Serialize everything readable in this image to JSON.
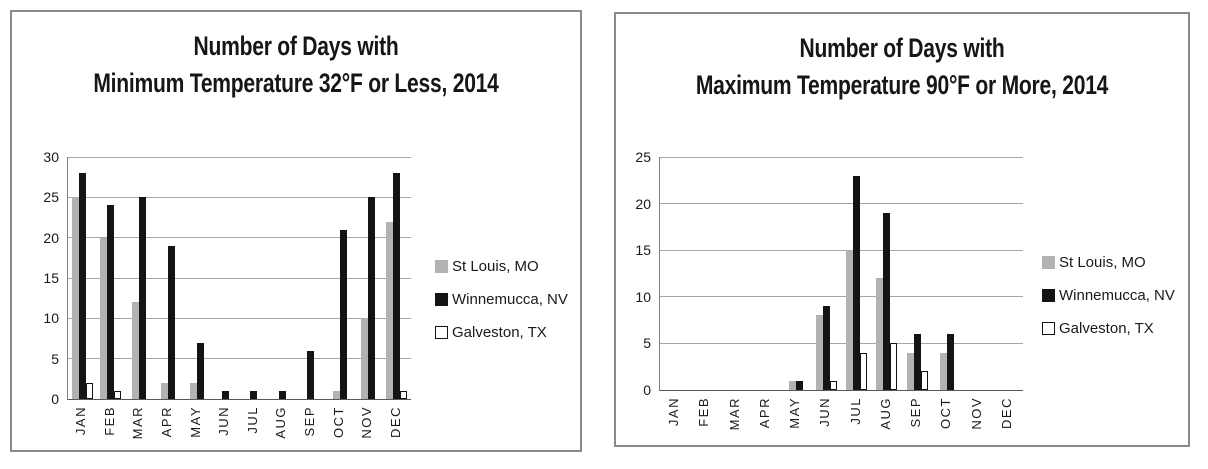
{
  "chart_data": [
    {
      "type": "bar",
      "title": "Number of Days with Minimum Temperature 32°F or Less, 2014",
      "title_line1": "Number of Days with",
      "title_line2": "Minimum Temperature 32°F or Less, 2014",
      "categories": [
        "JAN",
        "FEB",
        "MAR",
        "APR",
        "MAY",
        "JUN",
        "JUL",
        "AUG",
        "SEP",
        "OCT",
        "NOV",
        "DEC"
      ],
      "series": [
        {
          "name": "St Louis, MO",
          "color": "#b2b2b2",
          "values": [
            25,
            20,
            12,
            2,
            2,
            0,
            0,
            0,
            0,
            1,
            10,
            22
          ]
        },
        {
          "name": "Winnemucca, NV",
          "color": "#141414",
          "values": [
            28,
            24,
            25,
            19,
            7,
            1,
            1,
            1,
            6,
            21,
            25,
            28
          ]
        },
        {
          "name": "Galveston, TX",
          "color": "#ffffff",
          "border": "#141414",
          "values": [
            2,
            1,
            0,
            0,
            0,
            0,
            0,
            0,
            0,
            0,
            0,
            1
          ]
        }
      ],
      "xlabel": "",
      "ylabel": "",
      "ylim": [
        0,
        30
      ],
      "ytick_step": 5,
      "grid": true,
      "legend_position": "right"
    },
    {
      "type": "bar",
      "title": "Number of Days with Maximum Temperature 90°F or More, 2014",
      "title_line1": "Number of Days with",
      "title_line2": "Maximum Temperature 90°F or More, 2014",
      "categories": [
        "JAN",
        "FEB",
        "MAR",
        "APR",
        "MAY",
        "JUN",
        "JUL",
        "AUG",
        "SEP",
        "OCT",
        "NOV",
        "DEC"
      ],
      "series": [
        {
          "name": "St Louis, MO",
          "color": "#b2b2b2",
          "values": [
            0,
            0,
            0,
            0,
            1,
            8,
            15,
            12,
            4,
            4,
            0,
            0
          ]
        },
        {
          "name": "Winnemucca, NV",
          "color": "#141414",
          "values": [
            0,
            0,
            0,
            0,
            1,
            9,
            23,
            19,
            6,
            6,
            0,
            0
          ]
        },
        {
          "name": "Galveston, TX",
          "color": "#ffffff",
          "border": "#141414",
          "values": [
            0,
            0,
            0,
            0,
            0,
            1,
            4,
            5,
            2,
            0,
            0,
            0
          ]
        }
      ],
      "xlabel": "",
      "ylabel": "",
      "ylim": [
        0,
        25
      ],
      "ytick_step": 5,
      "grid": true,
      "legend_position": "right"
    }
  ],
  "colors": {
    "gray_series": "#b2b2b2",
    "black_series": "#141414",
    "white_series": "#ffffff",
    "panel_border": "#8a8a8a",
    "gridline": "#a6a6a6",
    "text": "#1a1a1a"
  }
}
